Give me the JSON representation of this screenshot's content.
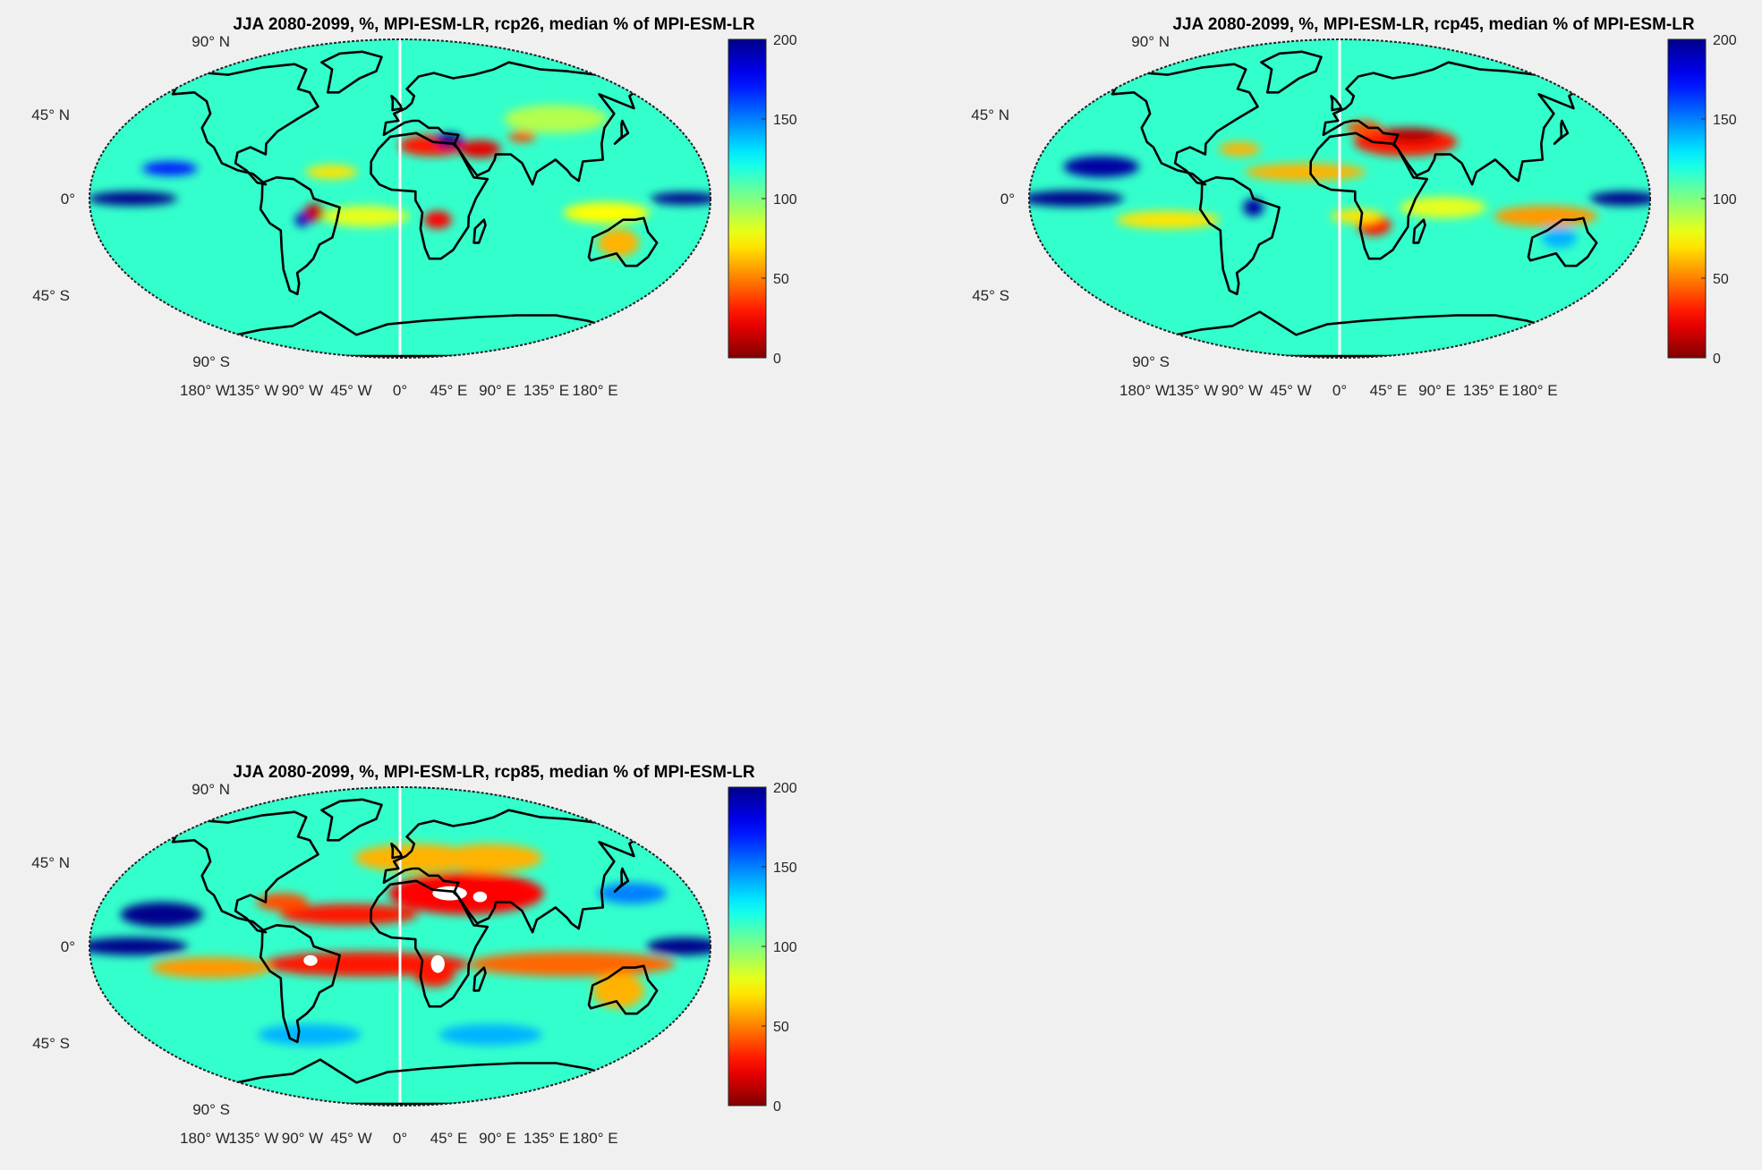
{
  "figure": {
    "background": "#f0f0f0",
    "land_outline_color": "#000000",
    "missing_data_color": "#ffffff"
  },
  "chart_data": [
    {
      "type": "heatmap",
      "map_projection": "robinson-like global map",
      "title": "JJA 2080-2099, %, MPI-ESM-LR, rcp26, median % of MPI-ESM-LR",
      "lat_tick_labels": [
        "90° N",
        "45° N",
        "0°",
        "45° S",
        "90° S"
      ],
      "lon_tick_labels": [
        "180° W",
        "135° W",
        "90° W",
        "45° W",
        "0°",
        "45° E",
        "90° E",
        "135° E",
        "180° E"
      ],
      "colorbar": {
        "ticks": [
          "0",
          "50",
          "100",
          "150",
          "200"
        ],
        "range": [
          0,
          200
        ],
        "colormap": "jet-reversed"
      },
      "grid": false,
      "legend": "colorbar-right"
    },
    {
      "type": "heatmap",
      "map_projection": "robinson-like global map",
      "title": "JJA 2080-2099, %, MPI-ESM-LR, rcp45, median % of MPI-ESM-LR",
      "lat_tick_labels": [
        "90° N",
        "45° N",
        "0°",
        "45° S",
        "90° S"
      ],
      "lon_tick_labels": [
        "180° W",
        "135° W",
        "90° W",
        "45° W",
        "0°",
        "45° E",
        "90° E",
        "135° E",
        "180° E"
      ],
      "colorbar": {
        "ticks": [
          "0",
          "50",
          "100",
          "150",
          "200"
        ],
        "range": [
          0,
          200
        ],
        "colormap": "jet-reversed"
      },
      "grid": false,
      "legend": "colorbar-right"
    },
    {
      "type": "heatmap",
      "map_projection": "robinson-like global map",
      "title": "JJA 2080-2099, %, MPI-ESM-LR, rcp85, median % of MPI-ESM-LR",
      "lat_tick_labels": [
        "90° N",
        "45° N",
        "0°",
        "45° S",
        "90° S"
      ],
      "lon_tick_labels": [
        "180° W",
        "135° W",
        "90° W",
        "45° W",
        "0°",
        "45° E",
        "90° E",
        "135° E",
        "180° E"
      ],
      "colorbar": {
        "ticks": [
          "0",
          "50",
          "100",
          "150",
          "200"
        ],
        "range": [
          0,
          200
        ],
        "colormap": "jet-reversed"
      },
      "grid": false,
      "legend": "colorbar-right"
    }
  ]
}
